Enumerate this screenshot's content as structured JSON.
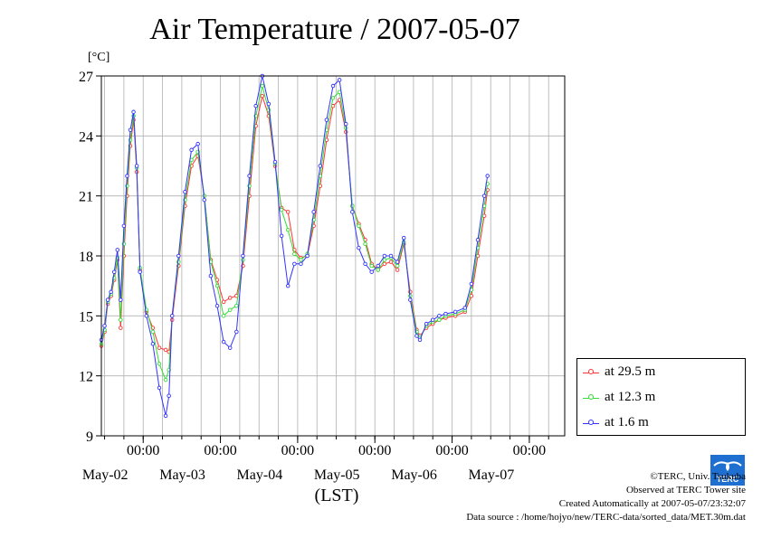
{
  "chart_data": {
    "type": "line",
    "title": "Air Temperature / 2007-05-07",
    "ylabel": "[°C]",
    "xlabel": "(LST)",
    "xlim": [
      "2007-05-01T11:00",
      "2007-05-07T11:00"
    ],
    "ylim": [
      9,
      27
    ],
    "yticks": [
      9,
      12,
      15,
      18,
      21,
      24,
      27
    ],
    "xticks": [
      {
        "t": "2007-05-02T00:00",
        "time": "00:00",
        "date": "May-02"
      },
      {
        "t": "2007-05-03T00:00",
        "time": "00:00",
        "date": "May-03"
      },
      {
        "t": "2007-05-04T00:00",
        "time": "00:00",
        "date": "May-04"
      },
      {
        "t": "2007-05-05T00:00",
        "time": "00:00",
        "date": "May-05"
      },
      {
        "t": "2007-05-06T00:00",
        "time": "00:00",
        "date": "May-06"
      },
      {
        "t": "2007-05-07T00:00",
        "time": "00:00",
        "date": "May-07"
      }
    ],
    "grid": true,
    "legend_position": "right",
    "series": [
      {
        "name": "at 29.5 m",
        "color": "#ff3333",
        "points": [
          [
            "2007-05-01T11:00",
            13.5
          ],
          [
            "2007-05-01T12:00",
            14.2
          ],
          [
            "2007-05-01T13:00",
            15.6
          ],
          [
            "2007-05-01T14:00",
            16.0
          ],
          [
            "2007-05-01T15:00",
            16.8
          ],
          [
            "2007-05-01T16:00",
            17.8
          ],
          [
            "2007-05-01T17:00",
            14.4
          ],
          [
            "2007-05-01T18:00",
            18.0
          ],
          [
            "2007-05-01T19:00",
            21.0
          ],
          [
            "2007-05-01T20:00",
            23.5
          ],
          [
            "2007-05-01T21:00",
            24.8
          ],
          [
            "2007-05-01T22:00",
            22.2
          ],
          [
            "2007-05-01T23:00",
            17.3
          ],
          [
            "2007-05-02T01:00",
            15.2
          ],
          [
            "2007-05-02T03:00",
            14.4
          ],
          [
            "2007-05-02T05:00",
            13.4
          ],
          [
            "2007-05-02T07:00",
            13.3
          ],
          [
            "2007-05-02T08:00",
            13.2
          ],
          [
            "2007-05-02T09:00",
            14.8
          ],
          [
            "2007-05-02T11:00",
            17.5
          ],
          [
            "2007-05-02T13:00",
            20.5
          ],
          [
            "2007-05-02T15:00",
            22.5
          ],
          [
            "2007-05-02T17:00",
            23.0
          ],
          [
            "2007-05-02T19:00",
            21.0
          ],
          [
            "2007-05-02T21:00",
            17.8
          ],
          [
            "2007-05-02T23:00",
            16.8
          ],
          [
            "2007-05-03T01:00",
            15.7
          ],
          [
            "2007-05-03T03:00",
            15.9
          ],
          [
            "2007-05-03T05:00",
            16.0
          ],
          [
            "2007-05-03T07:00",
            17.5
          ],
          [
            "2007-05-03T09:00",
            21.0
          ],
          [
            "2007-05-03T11:00",
            24.5
          ],
          [
            "2007-05-03T13:00",
            26.0
          ],
          [
            "2007-05-03T15:00",
            25.0
          ],
          [
            "2007-05-03T17:00",
            22.5
          ],
          [
            "2007-05-03T19:00",
            20.4
          ],
          [
            "2007-05-03T21:00",
            20.2
          ],
          [
            "2007-05-03T23:00",
            18.3
          ],
          [
            "2007-05-04T01:00",
            17.9
          ],
          [
            "2007-05-04T03:00",
            18.0
          ],
          [
            "2007-05-04T05:00",
            19.5
          ],
          [
            "2007-05-04T07:00",
            21.5
          ],
          [
            "2007-05-04T09:00",
            23.8
          ],
          [
            "2007-05-04T11:00",
            25.5
          ],
          [
            "2007-05-04T13:00",
            25.8
          ],
          [
            "2007-05-04T15:00",
            24.2
          ],
          [
            "2007-05-04T17:00",
            20.5
          ],
          [
            "2007-05-04T19:00",
            19.6
          ],
          [
            "2007-05-04T21:00",
            18.8
          ],
          [
            "2007-05-04T23:00",
            17.6
          ],
          [
            "2007-05-05T01:00",
            17.3
          ],
          [
            "2007-05-05T03:00",
            17.6
          ],
          [
            "2007-05-05T05:00",
            17.7
          ],
          [
            "2007-05-05T07:00",
            17.3
          ],
          [
            "2007-05-05T09:00",
            18.6
          ],
          [
            "2007-05-05T11:00",
            16.2
          ],
          [
            "2007-05-05T13:00",
            14.3
          ],
          [
            "2007-05-05T14:00",
            14.0
          ],
          [
            "2007-05-05T16:00",
            14.4
          ],
          [
            "2007-05-05T18:00",
            14.6
          ],
          [
            "2007-05-05T20:00",
            14.8
          ],
          [
            "2007-05-05T22:00",
            14.9
          ],
          [
            "2007-05-06T01:00",
            15.0
          ],
          [
            "2007-05-06T04:00",
            15.2
          ],
          [
            "2007-05-06T06:00",
            16.0
          ],
          [
            "2007-05-06T08:00",
            18.0
          ],
          [
            "2007-05-06T10:00",
            20.0
          ],
          [
            "2007-05-06T11:00",
            21.3
          ]
        ]
      },
      {
        "name": "at 12.3 m",
        "color": "#33dd33",
        "points": [
          [
            "2007-05-01T11:00",
            13.6
          ],
          [
            "2007-05-01T12:00",
            14.3
          ],
          [
            "2007-05-01T13:00",
            15.7
          ],
          [
            "2007-05-01T14:00",
            16.1
          ],
          [
            "2007-05-01T15:00",
            16.9
          ],
          [
            "2007-05-01T16:00",
            17.9
          ],
          [
            "2007-05-01T17:00",
            14.8
          ],
          [
            "2007-05-01T18:00",
            18.6
          ],
          [
            "2007-05-01T19:00",
            21.5
          ],
          [
            "2007-05-01T20:00",
            23.8
          ],
          [
            "2007-05-01T21:00",
            25.0
          ],
          [
            "2007-05-01T22:00",
            22.4
          ],
          [
            "2007-05-01T23:00",
            17.4
          ],
          [
            "2007-05-02T01:00",
            15.3
          ],
          [
            "2007-05-02T03:00",
            14.2
          ],
          [
            "2007-05-02T05:00",
            12.6
          ],
          [
            "2007-05-02T07:00",
            11.8
          ],
          [
            "2007-05-02T08:00",
            12.3
          ],
          [
            "2007-05-02T09:00",
            15.0
          ],
          [
            "2007-05-02T11:00",
            17.7
          ],
          [
            "2007-05-02T13:00",
            20.8
          ],
          [
            "2007-05-02T15:00",
            22.8
          ],
          [
            "2007-05-02T17:00",
            23.2
          ],
          [
            "2007-05-02T19:00",
            21.0
          ],
          [
            "2007-05-02T21:00",
            17.7
          ],
          [
            "2007-05-02T23:00",
            16.5
          ],
          [
            "2007-05-03T01:00",
            15.0
          ],
          [
            "2007-05-03T03:00",
            15.3
          ],
          [
            "2007-05-03T05:00",
            15.5
          ],
          [
            "2007-05-03T07:00",
            17.8
          ],
          [
            "2007-05-03T09:00",
            21.5
          ],
          [
            "2007-05-03T11:00",
            25.0
          ],
          [
            "2007-05-03T13:00",
            26.5
          ],
          [
            "2007-05-03T15:00",
            25.3
          ],
          [
            "2007-05-03T17:00",
            22.6
          ],
          [
            "2007-05-03T19:00",
            20.3
          ],
          [
            "2007-05-03T21:00",
            19.3
          ],
          [
            "2007-05-03T23:00",
            18.1
          ],
          [
            "2007-05-04T01:00",
            17.8
          ],
          [
            "2007-05-04T03:00",
            18.1
          ],
          [
            "2007-05-04T05:00",
            19.8
          ],
          [
            "2007-05-04T07:00",
            22.0
          ],
          [
            "2007-05-04T09:00",
            24.3
          ],
          [
            "2007-05-04T11:00",
            25.9
          ],
          [
            "2007-05-04T13:00",
            26.2
          ],
          [
            "2007-05-04T15:00",
            24.4
          ],
          [
            "2007-05-04T17:00",
            20.5
          ],
          [
            "2007-05-04T19:00",
            19.5
          ],
          [
            "2007-05-04T21:00",
            18.6
          ],
          [
            "2007-05-04T23:00",
            17.5
          ],
          [
            "2007-05-05T01:00",
            17.3
          ],
          [
            "2007-05-05T03:00",
            17.8
          ],
          [
            "2007-05-05T05:00",
            17.9
          ],
          [
            "2007-05-05T07:00",
            17.5
          ],
          [
            "2007-05-05T09:00",
            18.7
          ],
          [
            "2007-05-05T11:00",
            16.0
          ],
          [
            "2007-05-05T13:00",
            14.2
          ],
          [
            "2007-05-05T14:00",
            13.9
          ],
          [
            "2007-05-05T16:00",
            14.5
          ],
          [
            "2007-05-05T18:00",
            14.7
          ],
          [
            "2007-05-05T20:00",
            14.8
          ],
          [
            "2007-05-05T22:00",
            15.0
          ],
          [
            "2007-05-06T01:00",
            15.1
          ],
          [
            "2007-05-06T04:00",
            15.3
          ],
          [
            "2007-05-06T06:00",
            16.3
          ],
          [
            "2007-05-06T08:00",
            18.4
          ],
          [
            "2007-05-06T10:00",
            20.5
          ],
          [
            "2007-05-06T11:00",
            21.6
          ]
        ]
      },
      {
        "name": "at 1.6 m",
        "color": "#3333ff",
        "points": [
          [
            "2007-05-01T11:00",
            13.8
          ],
          [
            "2007-05-01T12:00",
            14.5
          ],
          [
            "2007-05-01T13:00",
            15.8
          ],
          [
            "2007-05-01T14:00",
            16.2
          ],
          [
            "2007-05-01T15:00",
            17.2
          ],
          [
            "2007-05-01T16:00",
            18.3
          ],
          [
            "2007-05-01T17:00",
            15.8
          ],
          [
            "2007-05-01T18:00",
            19.5
          ],
          [
            "2007-05-01T19:00",
            22.0
          ],
          [
            "2007-05-01T20:00",
            24.3
          ],
          [
            "2007-05-01T21:00",
            25.2
          ],
          [
            "2007-05-01T22:00",
            22.5
          ],
          [
            "2007-05-01T23:00",
            17.2
          ],
          [
            "2007-05-02T01:00",
            15.0
          ],
          [
            "2007-05-02T03:00",
            13.6
          ],
          [
            "2007-05-02T05:00",
            11.4
          ],
          [
            "2007-05-02T07:00",
            10.0
          ],
          [
            "2007-05-02T08:00",
            11.0
          ],
          [
            "2007-05-02T09:00",
            15.0
          ],
          [
            "2007-05-02T11:00",
            18.0
          ],
          [
            "2007-05-02T13:00",
            21.2
          ],
          [
            "2007-05-02T15:00",
            23.3
          ],
          [
            "2007-05-02T17:00",
            23.6
          ],
          [
            "2007-05-02T19:00",
            20.8
          ],
          [
            "2007-05-02T21:00",
            17.0
          ],
          [
            "2007-05-02T23:00",
            15.5
          ],
          [
            "2007-05-03T01:00",
            13.7
          ],
          [
            "2007-05-03T03:00",
            13.4
          ],
          [
            "2007-05-03T05:00",
            14.2
          ],
          [
            "2007-05-03T07:00",
            18.0
          ],
          [
            "2007-05-03T09:00",
            22.0
          ],
          [
            "2007-05-03T11:00",
            25.5
          ],
          [
            "2007-05-03T13:00",
            27.0
          ],
          [
            "2007-05-03T15:00",
            25.6
          ],
          [
            "2007-05-03T17:00",
            22.7
          ],
          [
            "2007-05-03T19:00",
            19.0
          ],
          [
            "2007-05-03T21:00",
            16.5
          ],
          [
            "2007-05-03T23:00",
            17.6
          ],
          [
            "2007-05-04T01:00",
            17.6
          ],
          [
            "2007-05-04T03:00",
            18.0
          ],
          [
            "2007-05-04T05:00",
            20.2
          ],
          [
            "2007-05-04T07:00",
            22.5
          ],
          [
            "2007-05-04T09:00",
            24.8
          ],
          [
            "2007-05-04T11:00",
            26.5
          ],
          [
            "2007-05-04T13:00",
            26.8
          ],
          [
            "2007-05-04T15:00",
            24.6
          ],
          [
            "2007-05-04T17:00",
            20.2
          ],
          [
            "2007-05-04T19:00",
            18.4
          ],
          [
            "2007-05-04T21:00",
            17.6
          ],
          [
            "2007-05-04T23:00",
            17.2
          ],
          [
            "2007-05-05T01:00",
            17.5
          ],
          [
            "2007-05-05T03:00",
            18.0
          ],
          [
            "2007-05-05T05:00",
            18.0
          ],
          [
            "2007-05-05T07:00",
            17.7
          ],
          [
            "2007-05-05T09:00",
            18.9
          ],
          [
            "2007-05-05T11:00",
            15.8
          ],
          [
            "2007-05-05T13:00",
            14.0
          ],
          [
            "2007-05-05T14:00",
            13.8
          ],
          [
            "2007-05-05T16:00",
            14.6
          ],
          [
            "2007-05-05T18:00",
            14.8
          ],
          [
            "2007-05-05T20:00",
            15.0
          ],
          [
            "2007-05-05T22:00",
            15.1
          ],
          [
            "2007-05-06T01:00",
            15.2
          ],
          [
            "2007-05-06T04:00",
            15.4
          ],
          [
            "2007-05-06T06:00",
            16.6
          ],
          [
            "2007-05-06T08:00",
            18.8
          ],
          [
            "2007-05-06T10:00",
            21.0
          ],
          [
            "2007-05-06T11:00",
            22.0
          ]
        ]
      }
    ]
  },
  "credits": {
    "copyright": "©TERC, Univ. Tsukuba",
    "observed": "Observed at TERC Tower site",
    "created": "Created Automatically at 2007-05-07/23:32:07",
    "source": "Data source : /home/hojyo/new/TERC-data/sorted_data/MET.30m.dat"
  },
  "logo": {
    "name": "terc-logo",
    "text": "TERC",
    "color": "#1f6fd1"
  }
}
